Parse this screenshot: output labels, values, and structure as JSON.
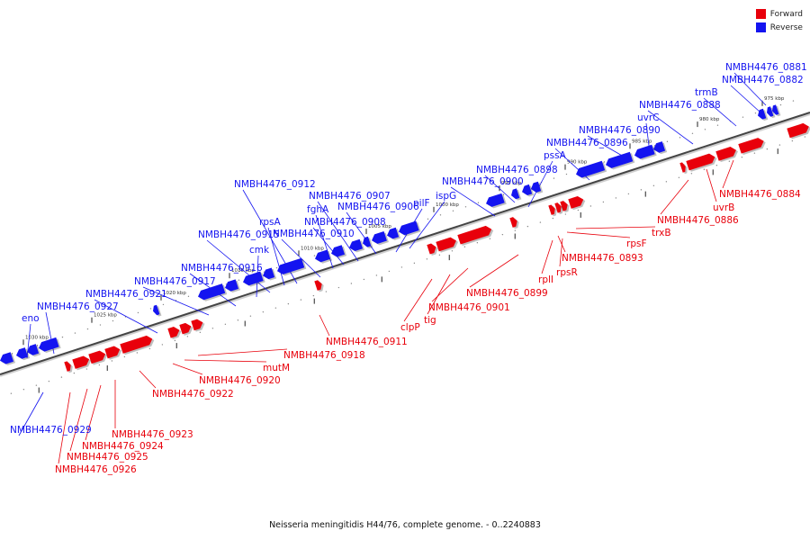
{
  "colors": {
    "forward": "#e8000b",
    "reverse": "#1414f0",
    "backbone": "#9a9a9a",
    "backbone_dark": "#444444",
    "tick": "#222222",
    "dot": "#888888"
  },
  "legend": [
    {
      "key": "forward",
      "label": "Forward",
      "color": "#e8000b"
    },
    {
      "key": "reverse",
      "label": "Reverse",
      "color": "#1414f0"
    }
  ],
  "caption": "Neisseria meningitidis H44/76, complete genome. - 0..2240883",
  "scale_markers": [
    "975 kbp",
    "980 kbp",
    "985 kbp",
    "990 kbp",
    "995 kbp",
    "1000 kbp",
    "1005 kbp",
    "1010 kbp",
    "1015 kbp",
    "1020 kbp",
    "1025 kbp",
    "1030 kbp"
  ],
  "genes": [
    {
      "label": "NMBH4476_0881",
      "strand": "reverse"
    },
    {
      "label": "NMBH4476_0882",
      "strand": "reverse"
    },
    {
      "label": "trmB",
      "strand": "reverse"
    },
    {
      "label": "NMBH4476_0888",
      "strand": "reverse"
    },
    {
      "label": "uvrC",
      "strand": "reverse"
    },
    {
      "label": "NMBH4476_0890",
      "strand": "reverse"
    },
    {
      "label": "NMBH4476_0896",
      "strand": "reverse"
    },
    {
      "label": "pssA",
      "strand": "reverse"
    },
    {
      "label": "NMBH4476_0898",
      "strand": "reverse"
    },
    {
      "label": "NMBH4476_0900",
      "strand": "reverse"
    },
    {
      "label": "ispG",
      "strand": "reverse"
    },
    {
      "label": "pilF",
      "strand": "reverse"
    },
    {
      "label": "NMBH4476_0906",
      "strand": "reverse"
    },
    {
      "label": "NMBH4476_0907",
      "strand": "reverse"
    },
    {
      "label": "fghA",
      "strand": "reverse"
    },
    {
      "label": "NMBH4476_0908",
      "strand": "reverse"
    },
    {
      "label": "NMBH4476_0910",
      "strand": "reverse"
    },
    {
      "label": "NMBH4476_0912",
      "strand": "reverse"
    },
    {
      "label": "rpsA",
      "strand": "reverse"
    },
    {
      "label": "NMBH4476_0915",
      "strand": "reverse"
    },
    {
      "label": "cmk",
      "strand": "reverse"
    },
    {
      "label": "NMBH4476_0916",
      "strand": "reverse"
    },
    {
      "label": "NMBH4476_0917",
      "strand": "reverse"
    },
    {
      "label": "NMBH4476_0921",
      "strand": "reverse"
    },
    {
      "label": "NMBH4476_0927",
      "strand": "reverse"
    },
    {
      "label": "eno",
      "strand": "reverse"
    },
    {
      "label": "NMBH4476_0929",
      "strand": "reverse"
    },
    {
      "label": "NMBH4476_0884",
      "strand": "forward"
    },
    {
      "label": "uvrB",
      "strand": "forward"
    },
    {
      "label": "NMBH4476_0886",
      "strand": "forward"
    },
    {
      "label": "trxB",
      "strand": "forward"
    },
    {
      "label": "rpsF",
      "strand": "forward"
    },
    {
      "label": "NMBH4476_0893",
      "strand": "forward"
    },
    {
      "label": "rpsR",
      "strand": "forward"
    },
    {
      "label": "rplI",
      "strand": "forward"
    },
    {
      "label": "NMBH4476_0899",
      "strand": "forward"
    },
    {
      "label": "NMBH4476_0901",
      "strand": "forward"
    },
    {
      "label": "tig",
      "strand": "forward"
    },
    {
      "label": "clpP",
      "strand": "forward"
    },
    {
      "label": "NMBH4476_0911",
      "strand": "forward"
    },
    {
      "label": "NMBH4476_0918",
      "strand": "forward"
    },
    {
      "label": "mutM",
      "strand": "forward"
    },
    {
      "label": "NMBH4476_0920",
      "strand": "forward"
    },
    {
      "label": "NMBH4476_0922",
      "strand": "forward"
    },
    {
      "label": "NMBH4476_0923",
      "strand": "forward"
    },
    {
      "label": "NMBH4476_0924",
      "strand": "forward"
    },
    {
      "label": "NMBH4476_0925",
      "strand": "forward"
    },
    {
      "label": "NMBH4476_0926",
      "strand": "forward"
    }
  ]
}
